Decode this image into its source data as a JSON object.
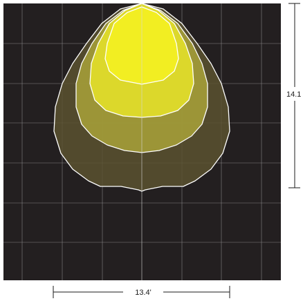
{
  "diagram": {
    "type": "photometric-footprint",
    "colors": {
      "background": "#231f20",
      "grid": "#d8d8d8",
      "outline": "#ffffff",
      "dimension": "#1a1a1a",
      "zones": [
        "#5a5230",
        "#a9a23a",
        "#e2dd2a",
        "#f2ee22"
      ]
    },
    "zones_count": 4
  },
  "dimensions": {
    "width_label": "13.4'",
    "height_label": "14.1"
  }
}
